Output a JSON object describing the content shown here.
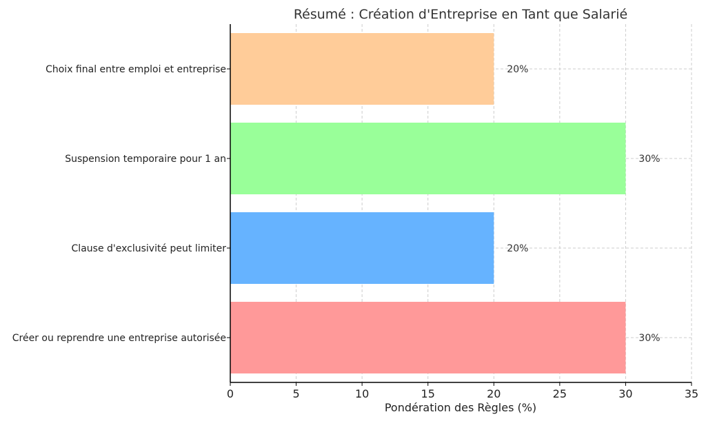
{
  "chart_data": {
    "type": "bar",
    "orientation": "horizontal",
    "title": "Résumé : Création d'Entreprise en Tant que Salarié",
    "xlabel": "Pondération des Règles (%)",
    "ylabel": "",
    "xlim": [
      0,
      35
    ],
    "xticks": [
      0,
      5,
      10,
      15,
      20,
      25,
      30,
      35
    ],
    "grid": true,
    "categories": [
      "Créer ou reprendre une entreprise autorisée",
      "Clause d'exclusivité peut limiter",
      "Suspension temporaire pour 1 an",
      "Choix final entre emploi et entreprise"
    ],
    "values": [
      30,
      20,
      30,
      20
    ],
    "value_labels": [
      "30%",
      "20%",
      "30%",
      "20%"
    ],
    "colors": [
      "#ff9999",
      "#66b3ff",
      "#99ff99",
      "#ffcc99"
    ]
  }
}
